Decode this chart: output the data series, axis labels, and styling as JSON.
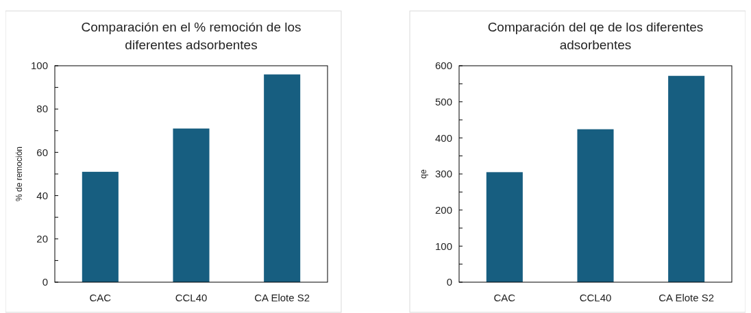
{
  "chart_data": [
    {
      "type": "bar",
      "title": "Comparación en el % remoción de los diferentes adsorbentes",
      "ylabel": "% de remoción",
      "categories": [
        "CAC",
        "CCL40",
        "CA Elote S2"
      ],
      "values": [
        51,
        71,
        96
      ],
      "color": "#175e80",
      "ylim": [
        0,
        100
      ],
      "yticks": [
        0,
        {
          "value": 10,
          "label": null
        },
        20,
        {
          "value": 30,
          "label": null
        },
        40,
        {
          "value": 50,
          "label": null
        },
        60,
        {
          "value": 70,
          "label": null
        },
        80,
        {
          "value": 90,
          "label": null
        },
        100
      ],
      "grid": false
    },
    {
      "type": "bar",
      "title": "Comparación del qe de los diferentes adsorbentes",
      "ylabel": "qe",
      "categories": [
        "CAC",
        "CCL40",
        "CA Elote S2"
      ],
      "values": [
        305,
        424,
        572
      ],
      "color": "#175e80",
      "ylim": [
        0,
        600
      ],
      "yticks": [
        0,
        {
          "value": 50,
          "label": null
        },
        100,
        {
          "value": 150,
          "label": null
        },
        200,
        {
          "value": 250,
          "label": null
        },
        300,
        {
          "value": 350,
          "label": null
        },
        400,
        {
          "value": 450,
          "label": null
        },
        500,
        {
          "value": 550,
          "label": null
        },
        600
      ],
      "grid": false
    }
  ]
}
